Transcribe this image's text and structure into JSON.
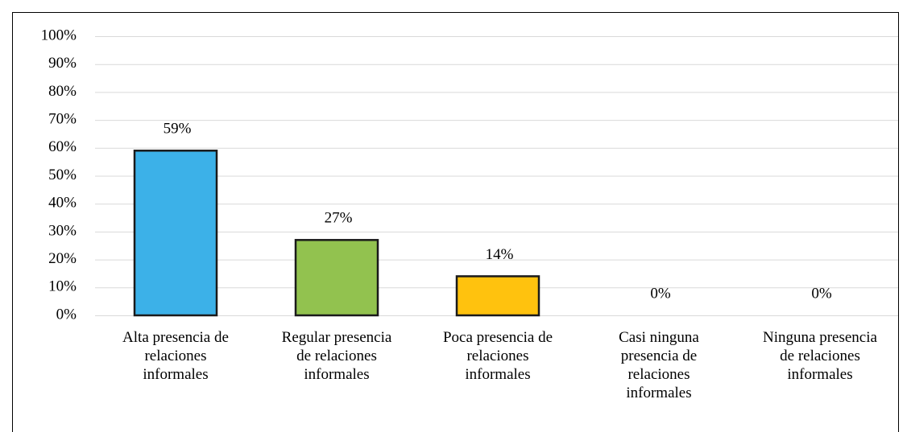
{
  "chart_data": {
    "type": "bar",
    "categories": [
      "Alta presencia de relaciones informales",
      "Regular presencia de relaciones informales",
      "Poca presencia de relaciones informales",
      "Casi ninguna presencia de relaciones informales",
      "Ninguna presencia de relaciones informales"
    ],
    "values": [
      59,
      27,
      14,
      0,
      0
    ],
    "value_labels": [
      "59%",
      "27%",
      "14%",
      "0%",
      "0%"
    ],
    "colors": [
      "#3cb1e8",
      "#92c24f",
      "#ffc20e",
      "#a5a5a5",
      "#5b9bd5"
    ],
    "ylim": [
      0,
      100
    ],
    "yticks": [
      {
        "value": 0,
        "label": "0%"
      },
      {
        "value": 10,
        "label": "10%"
      },
      {
        "value": 20,
        "label": "20%"
      },
      {
        "value": 30,
        "label": "30%"
      },
      {
        "value": 40,
        "label": "40%"
      },
      {
        "value": 50,
        "label": "50%"
      },
      {
        "value": 60,
        "label": "60%"
      },
      {
        "value": 70,
        "label": "70%"
      },
      {
        "value": 80,
        "label": "80%"
      },
      {
        "value": 90,
        "label": "90%"
      },
      {
        "value": 100,
        "label": "100%"
      }
    ],
    "grid": true
  }
}
